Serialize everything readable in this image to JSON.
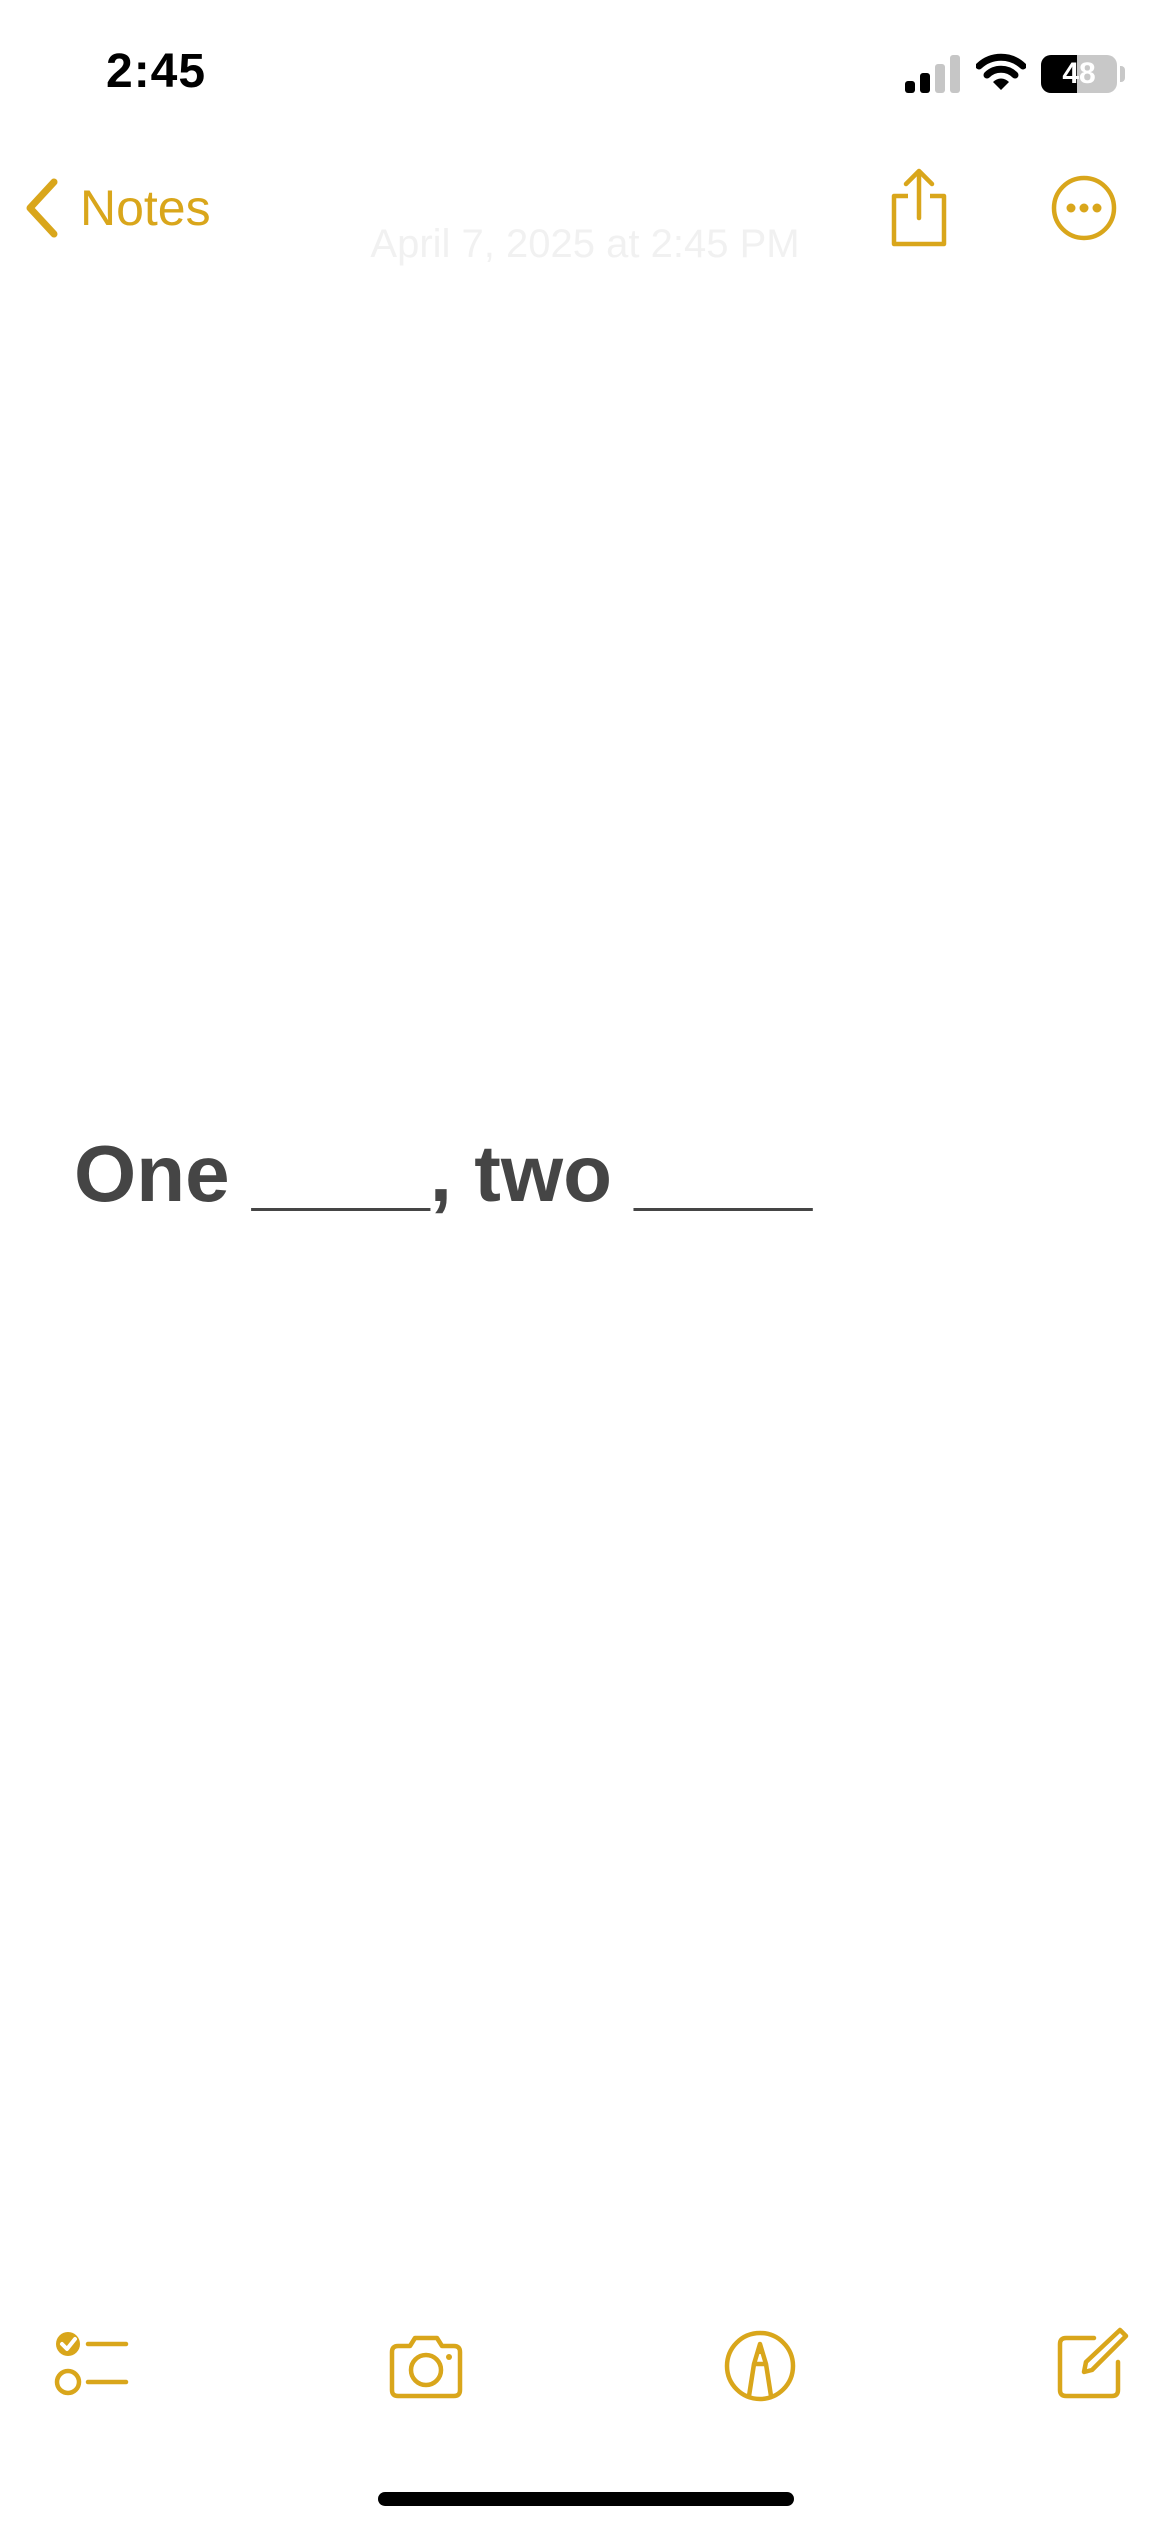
{
  "status_bar": {
    "time": "2:45",
    "battery_level": "48",
    "icons": [
      "signal-icon",
      "wifi-icon",
      "battery-icon"
    ]
  },
  "nav": {
    "back_label": "Notes",
    "date": "April 7, 2025 at 2:45 PM",
    "icons": [
      "chevron-left-icon",
      "share-icon",
      "more-icon"
    ]
  },
  "note": {
    "text": "One ____, two ____"
  },
  "toolbar": {
    "icons": [
      "checklist-icon",
      "camera-icon",
      "markup-icon",
      "compose-icon"
    ]
  },
  "colors": {
    "accent": "#d9a61b",
    "note_text": "#454545",
    "background": "#ffffff"
  }
}
